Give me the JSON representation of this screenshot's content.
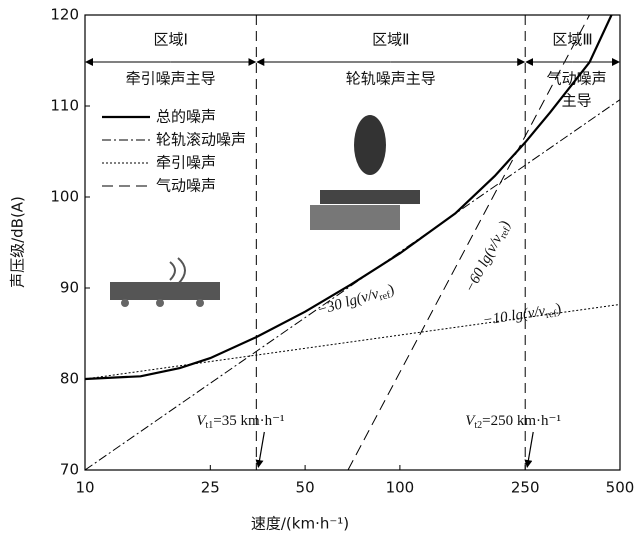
{
  "chart_data": {
    "type": "line",
    "xlabel": "速度/(km·h⁻¹)",
    "ylabel": "声压级/dB(A)",
    "log_x": true,
    "xlim": [
      10,
      500
    ],
    "xticks": [
      10,
      25,
      50,
      100,
      250,
      500
    ],
    "ylim": [
      70,
      120
    ],
    "yticks": [
      70,
      80,
      90,
      100,
      110,
      120
    ],
    "series": [
      {
        "name": "总的噪声",
        "color": "#000000",
        "dash": "solid",
        "width": 2.2,
        "x": [
          10,
          15,
          20,
          25,
          35,
          50,
          70,
          100,
          150,
          200,
          250,
          300,
          400,
          470
        ],
        "values": [
          80,
          80.3,
          81.2,
          82.3,
          84.6,
          87.4,
          90.4,
          93.8,
          98.2,
          102.3,
          106,
          109.3,
          114.8,
          120
        ]
      },
      {
        "name": "轮轨滚动噪声",
        "color": "#000000",
        "dash": "dashdot",
        "width": 1,
        "x": [
          10,
          500
        ],
        "values": [
          70,
          110.7
        ]
      },
      {
        "name": "牵引噪声",
        "color": "#000000",
        "dash": "dotted",
        "width": 1,
        "x": [
          10,
          500
        ],
        "values": [
          80,
          88.2
        ]
      },
      {
        "name": "气动噪声",
        "color": "#000000",
        "dash": "dashed",
        "width": 1,
        "x": [
          68.4,
          400
        ],
        "values": [
          70,
          120
        ]
      }
    ],
    "boundaries": [
      35,
      250
    ],
    "regions": [
      {
        "label": "区域Ⅰ",
        "lines": [
          "牵引噪声主导"
        ]
      },
      {
        "label": "区域Ⅱ",
        "lines": [
          "轮轨噪声主导"
        ]
      },
      {
        "label": "区域Ⅲ",
        "lines": [
          "气动噪声",
          "主导"
        ]
      }
    ],
    "annotations": [
      {
        "text": "−30 lg(v/v",
        "sub": "ref",
        "after": ")"
      },
      {
        "text": "−60 lg(v/v",
        "sub": "ref",
        "after": ")"
      },
      {
        "text": "−10 lg(v/v",
        "sub": "ref",
        "after": ")"
      }
    ],
    "transitions": [
      {
        "text": "V",
        "sub": "t1",
        "after": "=35 km·h⁻¹"
      },
      {
        "text": "V",
        "sub": "t2",
        "after": "=250 km·h⁻¹"
      }
    ]
  }
}
